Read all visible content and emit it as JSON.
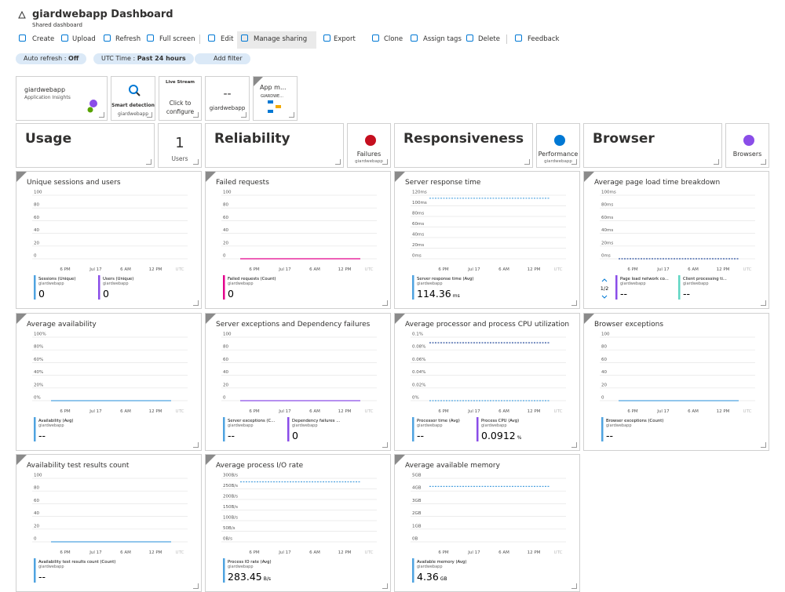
{
  "header": {
    "title": "giardwebapp Dashboard",
    "subtitle": "Shared dashboard"
  },
  "toolbar": [
    "Create",
    "Upload",
    "Refresh",
    "Full screen",
    "Edit",
    "Manage sharing",
    "Export",
    "Clone",
    "Assign tags",
    "Delete",
    "Feedback"
  ],
  "filters": [
    {
      "label": "Auto refresh :",
      "value": "Off"
    },
    {
      "label": "UTC Time :",
      "value": "Past 24 hours"
    }
  ],
  "add_filter": "Add filter",
  "tiles": {
    "app": {
      "title": "giardwebapp",
      "subtitle": "Application Insights"
    },
    "smart": {
      "title": "Smart detection",
      "subtitle": "giardwebapp"
    },
    "live": {
      "title": "Live Stream",
      "text": "Click to configure"
    },
    "metric": {
      "value": "--",
      "subtitle": "giardwebapp"
    },
    "appmap": {
      "title": "App m...",
      "subtitle": "GIARDWE..."
    }
  },
  "sections": [
    {
      "title": "Usage",
      "side": {
        "value": 1,
        "label": "Users"
      }
    },
    {
      "title": "Reliability",
      "side": {
        "label": "Failures",
        "subtitle": "giardwebapp"
      }
    },
    {
      "title": "Responsiveness",
      "side": {
        "label": "Performance",
        "subtitle": "giardwebapp"
      }
    },
    {
      "title": "Browser",
      "side": {
        "label": "Browsers"
      }
    }
  ],
  "charts": [
    {
      "title": "Unique sessions and users",
      "ylim": [
        0,
        100
      ],
      "yticks": [
        100,
        80,
        60,
        40,
        20,
        0
      ],
      "xticks": [
        "6 PM",
        "Jul 17",
        "6 AM",
        "12 PM",
        "UTC"
      ],
      "lines": [],
      "legend": [
        {
          "name": "Sessions (Unique)",
          "source": "giardwebapp",
          "value": 0,
          "color": "#4fa3e0"
        },
        {
          "name": "Users (Unique)",
          "source": "giardwebapp",
          "value": 0,
          "color": "#8a4de8"
        }
      ]
    },
    {
      "title": "Failed requests",
      "ylim": [
        0,
        100
      ],
      "yticks": [
        100,
        80,
        60,
        40,
        20,
        0
      ],
      "xticks": [
        "6 PM",
        "Jul 17",
        "6 AM",
        "12 PM",
        "UTC"
      ],
      "lines": [
        {
          "level": 0,
          "color": "#e3008c",
          "dashed": false
        }
      ],
      "legend": [
        {
          "name": "Failed requests (Count)",
          "source": "giardwebapp",
          "value": 0,
          "color": "#e3008c"
        }
      ]
    },
    {
      "title": "Server response time",
      "ylim": [
        0,
        120
      ],
      "yticks": [
        {
          "value": 120,
          "label": "120ms"
        },
        {
          "value": 100,
          "label": "100ms"
        },
        {
          "value": 80,
          "label": "80ms"
        },
        {
          "value": 60,
          "label": "60ms"
        },
        {
          "value": 40,
          "label": "40ms"
        },
        {
          "value": 20,
          "label": "20ms"
        },
        {
          "value": 0,
          "label": "0ms"
        }
      ],
      "xticks": [
        "6 PM",
        "Jul 17",
        "6 AM",
        "12 PM",
        "UTC"
      ],
      "lines": [
        {
          "level": 114.36,
          "color": "#4fa3e0",
          "dashed": true
        }
      ],
      "legend": [
        {
          "name": "Server response time (Avg)",
          "source": "giardwebapp",
          "value": 114.36,
          "unit": "ms",
          "color": "#4fa3e0"
        }
      ]
    },
    {
      "title": "Average page load time breakdown",
      "ylim": [
        0,
        100
      ],
      "yticks": [
        {
          "value": 100,
          "label": "100ms"
        },
        {
          "value": 80,
          "label": "80ms"
        },
        {
          "value": 60,
          "label": "60ms"
        },
        {
          "value": 40,
          "label": "40ms"
        },
        {
          "value": 20,
          "label": "20ms"
        },
        {
          "value": 0,
          "label": "0ms"
        }
      ],
      "xticks": [
        "6 PM",
        "Jul 17",
        "6 AM",
        "12 PM",
        "UTC"
      ],
      "lines": [
        {
          "level": 0,
          "color": "#2b4f9e",
          "dashed": true
        }
      ],
      "pager": "1/2",
      "legend": [
        {
          "name": "Page load network co...",
          "source": "giardwebapp",
          "value": "--",
          "color": "#8a4de8"
        },
        {
          "name": "Client processing ti...",
          "source": "giardwebapp",
          "value": "--",
          "color": "#5fd6c3"
        }
      ]
    },
    {
      "title": "Average availability",
      "ylim": [
        0,
        100
      ],
      "yticks": [
        {
          "value": 100,
          "label": "100%"
        },
        {
          "value": 80,
          "label": "80%"
        },
        {
          "value": 60,
          "label": "60%"
        },
        {
          "value": 40,
          "label": "40%"
        },
        {
          "value": 20,
          "label": "20%"
        },
        {
          "value": 0,
          "label": "0%"
        }
      ],
      "xticks": [
        "6 PM",
        "Jul 17",
        "6 AM",
        "12 PM",
        "UTC"
      ],
      "lines": [
        {
          "level": 0,
          "color": "#4fa3e0",
          "dashed": false
        }
      ],
      "legend": [
        {
          "name": "Availability (Avg)",
          "source": "giardwebapp",
          "value": "--",
          "color": "#4fa3e0"
        }
      ]
    },
    {
      "title": "Server exceptions and Dependency failures",
      "ylim": [
        0,
        100
      ],
      "yticks": [
        100,
        80,
        60,
        40,
        20,
        0
      ],
      "xticks": [
        "6 PM",
        "Jul 17",
        "6 AM",
        "12 PM",
        "UTC"
      ],
      "lines": [
        {
          "level": 0,
          "color": "#8a4de8",
          "dashed": false
        }
      ],
      "legend": [
        {
          "name": "Server exceptions (C...",
          "source": "giardwebapp",
          "value": "--",
          "color": "#4fa3e0"
        },
        {
          "name": "Dependency failures ...",
          "source": "giardwebapp",
          "value": 0,
          "color": "#8a4de8"
        }
      ]
    },
    {
      "title": "Average processor and process CPU utilization",
      "ylim": [
        0,
        0.1
      ],
      "yticks": [
        {
          "value": 0.1,
          "label": "0.1%"
        },
        {
          "value": 0.08,
          "label": "0.08%"
        },
        {
          "value": 0.06,
          "label": "0.06%"
        },
        {
          "value": 0.04,
          "label": "0.04%"
        },
        {
          "value": 0.02,
          "label": "0.02%"
        },
        {
          "value": 0,
          "label": "0%"
        }
      ],
      "xticks": [
        "6 PM",
        "Jul 17",
        "6 AM",
        "12 PM",
        "UTC"
      ],
      "lines": [
        {
          "level": 0.0912,
          "color": "#2b4f9e",
          "dashed": true
        },
        {
          "level": 0,
          "color": "#4fa3e0",
          "dashed": true
        }
      ],
      "legend": [
        {
          "name": "Processor time (Avg)",
          "source": "giardwebapp",
          "value": "--",
          "color": "#4fa3e0"
        },
        {
          "name": "Process CPU (Avg)",
          "source": "giardwebapp",
          "value": 0.0912,
          "unit": "%",
          "color": "#8a4de8"
        }
      ]
    },
    {
      "title": "Browser exceptions",
      "ylim": [
        0,
        100
      ],
      "yticks": [
        100,
        80,
        60,
        40,
        20,
        0
      ],
      "xticks": [
        "6 PM",
        "Jul 17",
        "6 AM",
        "12 PM",
        "UTC"
      ],
      "lines": [
        {
          "level": 0,
          "color": "#4fa3e0",
          "dashed": false
        }
      ],
      "legend": [
        {
          "name": "Browser exceptions (Count)",
          "source": "giardwebapp",
          "value": "--",
          "color": "#4fa3e0"
        }
      ]
    },
    {
      "title": "Availability test results count",
      "ylim": [
        0,
        100
      ],
      "yticks": [
        100,
        80,
        60,
        40,
        20,
        0
      ],
      "xticks": [
        "6 PM",
        "Jul 17",
        "6 AM",
        "12 PM",
        "UTC"
      ],
      "lines": [
        {
          "level": 0,
          "color": "#4fa3e0",
          "dashed": false
        }
      ],
      "legend": [
        {
          "name": "Availability test results count (Count)",
          "source": "giardwebapp",
          "value": "--",
          "color": "#4fa3e0"
        }
      ]
    },
    {
      "title": "Average process I/O rate",
      "ylim": [
        0,
        300
      ],
      "yticks": [
        {
          "value": 300,
          "label": "300B/s"
        },
        {
          "value": 250,
          "label": "250B/s"
        },
        {
          "value": 200,
          "label": "200B/s"
        },
        {
          "value": 150,
          "label": "150B/s"
        },
        {
          "value": 100,
          "label": "100B/s"
        },
        {
          "value": 50,
          "label": "50B/s"
        },
        {
          "value": 0,
          "label": "0B/s"
        }
      ],
      "xticks": [
        "6 PM",
        "Jul 17",
        "6 AM",
        "12 PM",
        "UTC"
      ],
      "lines": [
        {
          "level": 283.45,
          "color": "#4fa3e0",
          "dashed": true
        }
      ],
      "legend": [
        {
          "name": "Process IO rate (Avg)",
          "source": "giardwebapp",
          "value": 283.45,
          "unit": "B/s",
          "color": "#4fa3e0"
        }
      ]
    },
    {
      "title": "Average available memory",
      "ylim": [
        0,
        5
      ],
      "yticks": [
        {
          "value": 5,
          "label": "5GB"
        },
        {
          "value": 4,
          "label": "4GB"
        },
        {
          "value": 3,
          "label": "3GB"
        },
        {
          "value": 2,
          "label": "2GB"
        },
        {
          "value": 1,
          "label": "1GB"
        },
        {
          "value": 0,
          "label": "0B"
        }
      ],
      "xticks": [
        "6 PM",
        "Jul 17",
        "6 AM",
        "12 PM",
        "UTC"
      ],
      "lines": [
        {
          "level": 4.36,
          "color": "#4fa3e0",
          "dashed": true
        }
      ],
      "legend": [
        {
          "name": "Available memory (Avg)",
          "source": "giardwebapp",
          "value": 4.36,
          "unit": "GB",
          "color": "#4fa3e0"
        }
      ]
    }
  ]
}
